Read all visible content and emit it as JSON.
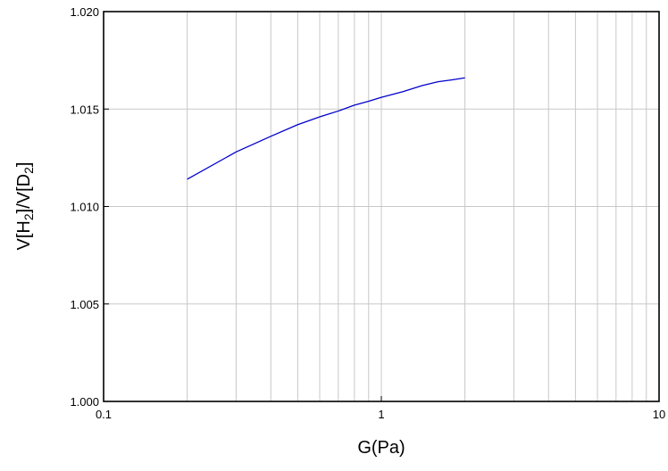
{
  "chart_data": {
    "type": "line",
    "title": "",
    "xlabel": "G(Pa)",
    "ylabel": {
      "parts": [
        "V[H",
        "2",
        "]/V[D",
        "2",
        "]"
      ]
    },
    "xscale": "log",
    "xlim": [
      0.1,
      10
    ],
    "ylim": [
      1.0,
      1.02
    ],
    "x_ticks": [
      0.1,
      1,
      10
    ],
    "x_tick_labels": [
      "0.1",
      "1",
      "10"
    ],
    "y_ticks": [
      1.0,
      1.005,
      1.01,
      1.015,
      1.02
    ],
    "y_tick_labels": [
      "1.000",
      "1.005",
      "1.010",
      "1.015",
      "1.020"
    ],
    "grid": true,
    "legend": "none",
    "series": [
      {
        "color": "#0000cc",
        "x": [
          0.2,
          0.3,
          0.4,
          0.5,
          0.6,
          0.7,
          0.8,
          0.9,
          1.0,
          1.2,
          1.4,
          1.6,
          1.8,
          2.0
        ],
        "y": [
          1.0114,
          1.0128,
          1.0136,
          1.0142,
          1.0146,
          1.0149,
          1.0152,
          1.0154,
          1.0156,
          1.0159,
          1.0162,
          1.0164,
          1.0165,
          1.0166
        ]
      }
    ]
  }
}
